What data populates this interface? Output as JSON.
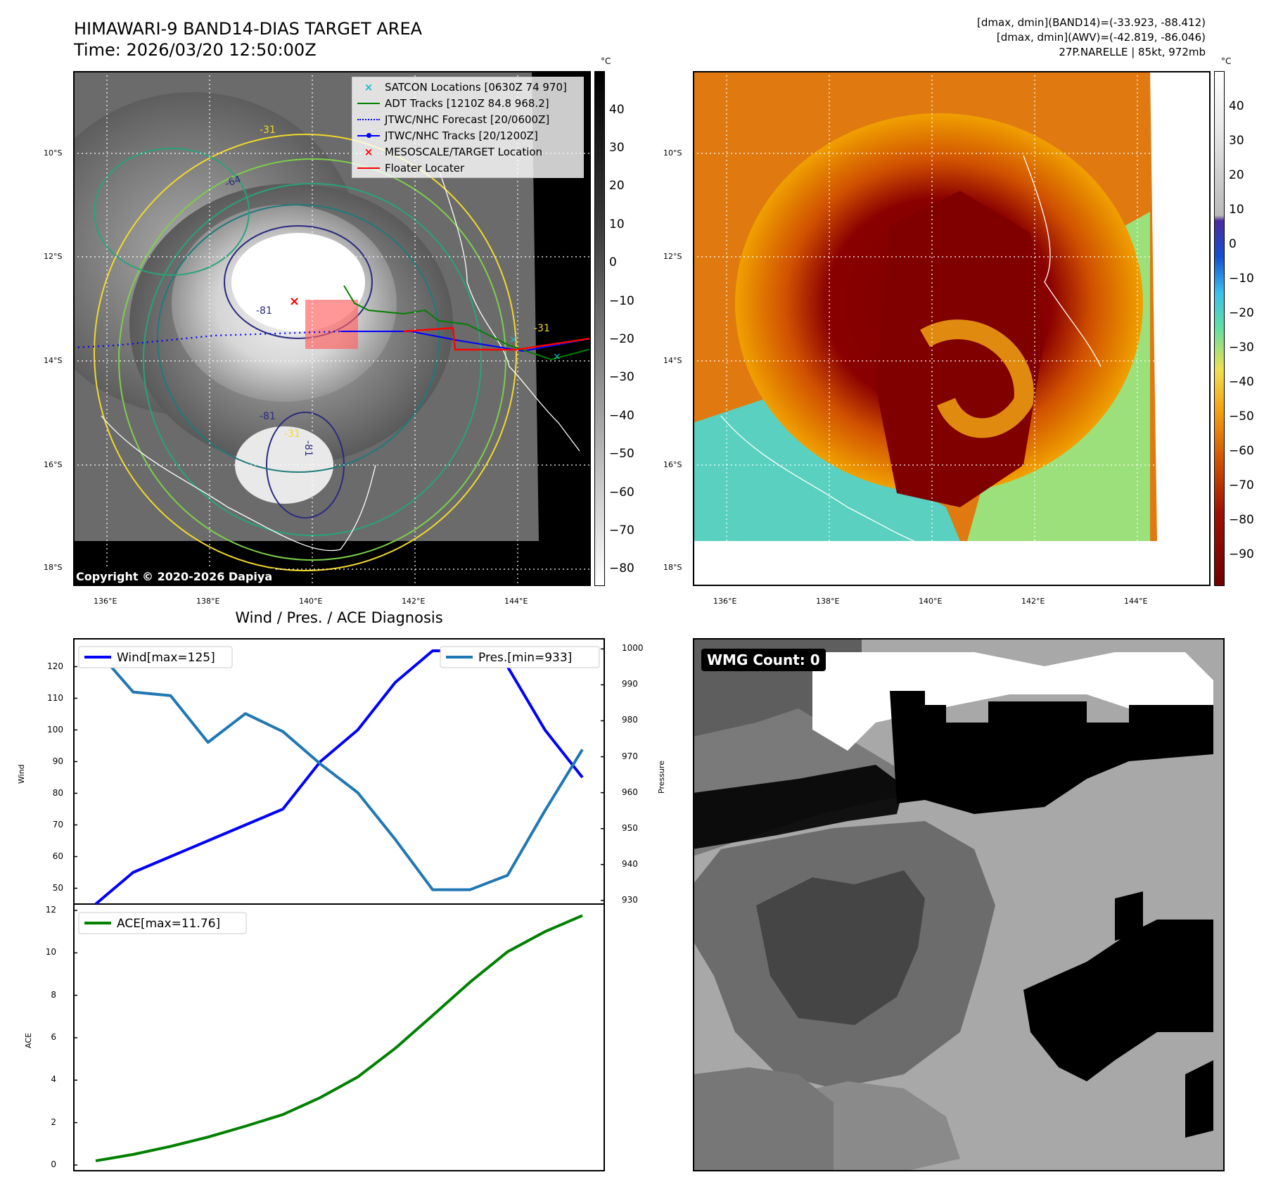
{
  "header": {
    "title_line1": "HIMAWARI-9 BAND14-DIAS TARGET AREA",
    "title_line2": "Time: 2026/03/20 12:50:00Z",
    "info_line1": "[dmax, dmin](BAND14)=(-33.923, -88.412)",
    "info_line2": "[dmax, dmin](AWV)=(-42.819, -86.046)",
    "info_line3": "27P.NARELLE | 85kt, 972mb"
  },
  "map_axes": {
    "lat_labels": [
      "10°S",
      "12°S",
      "14°S",
      "16°S",
      "18°S"
    ],
    "lon_labels": [
      "136°E",
      "138°E",
      "140°E",
      "142°E",
      "144°E"
    ]
  },
  "ir_panel": {
    "colorbar_unit": "°C",
    "colorbar_ticks": [
      "40",
      "30",
      "20",
      "10",
      "0",
      "−10",
      "−20",
      "−30",
      "−40",
      "−50",
      "−60",
      "−70",
      "−80"
    ],
    "contour_labels": [
      "-64",
      "-81",
      "-31",
      "-31",
      "-81",
      "-31",
      "-81"
    ],
    "copyright": "Copyright © 2020-2026 Dapiya",
    "legend": [
      {
        "label": "SATCON Locations [0630Z 74 970]",
        "symbol": "x-cyan",
        "color": "#17becf"
      },
      {
        "label": "ADT Tracks [1210Z 84.8 968.2]",
        "symbol": "line",
        "color": "#008000"
      },
      {
        "label": "JTWC/NHC Forecast [20/0600Z]",
        "symbol": "dotted",
        "color": "#0000ff"
      },
      {
        "label": "JTWC/NHC Tracks [20/1200Z]",
        "symbol": "line-dot",
        "color": "#0000ff"
      },
      {
        "label": "MESOSCALE/TARGET Location",
        "symbol": "x-red",
        "color": "#ff0000"
      },
      {
        "label": "Floater Locater",
        "symbol": "line",
        "color": "#ff0000"
      }
    ]
  },
  "awv_panel": {
    "colorbar_unit": "°C",
    "colorbar_ticks": [
      "40",
      "30",
      "20",
      "10",
      "0",
      "−10",
      "−20",
      "−30",
      "−40",
      "−50",
      "−60",
      "−70",
      "−80",
      "−90"
    ]
  },
  "wmg_panel": {
    "badge": "WMG Count: 0"
  },
  "chart_data": [
    {
      "type": "line",
      "title": "Wind / Pres. / ACE Diagnosis",
      "x": [
        0,
        1,
        2,
        3,
        4,
        5,
        6,
        7,
        8,
        9,
        10,
        11,
        12,
        13
      ],
      "ylabel": "Wind",
      "ylabel2": "Pressure",
      "ylim": [
        45,
        129
      ],
      "ylim2": [
        929,
        1003
      ],
      "yticks": [
        50,
        60,
        70,
        80,
        90,
        100,
        110,
        120
      ],
      "yticks2": [
        930,
        940,
        950,
        960,
        970,
        980,
        990,
        1000
      ],
      "series": [
        {
          "name": "Wind[max=125]",
          "axis": "left",
          "color": "#0000ff",
          "values": [
            45,
            55,
            60,
            65,
            70,
            75,
            90,
            100,
            115,
            125,
            125,
            120,
            100,
            85
          ]
        },
        {
          "name": "Pres.[min=933]",
          "axis": "right",
          "color": "#1f77b4",
          "values": [
            1000,
            988,
            987,
            974,
            982,
            977,
            968,
            960,
            947,
            933,
            933,
            937,
            955,
            972
          ]
        }
      ],
      "legend_left": "top-left",
      "legend_right": "top-right"
    },
    {
      "type": "line",
      "x": [
        0,
        1,
        2,
        3,
        4,
        5,
        6,
        7,
        8,
        9,
        10,
        11,
        12,
        13
      ],
      "ylabel": "ACE",
      "ylim": [
        -0.3,
        12.3
      ],
      "yticks": [
        0,
        2,
        4,
        6,
        8,
        10,
        12
      ],
      "series": [
        {
          "name": "ACE[max=11.76]",
          "color": "#008000",
          "values": [
            0.2,
            0.5,
            0.88,
            1.32,
            1.83,
            2.38,
            3.18,
            4.15,
            5.5,
            7.05,
            8.62,
            10.05,
            11.0,
            11.76
          ]
        }
      ],
      "legend": "top-left"
    }
  ]
}
